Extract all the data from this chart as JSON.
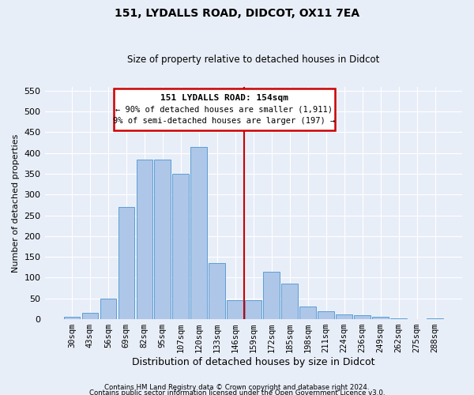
{
  "title": "151, LYDALLS ROAD, DIDCOT, OX11 7EA",
  "subtitle": "Size of property relative to detached houses in Didcot",
  "xlabel": "Distribution of detached houses by size in Didcot",
  "ylabel": "Number of detached properties",
  "footer_line1": "Contains HM Land Registry data © Crown copyright and database right 2024.",
  "footer_line2": "Contains public sector information licensed under the Open Government Licence v3.0.",
  "bar_labels": [
    "30sqm",
    "43sqm",
    "56sqm",
    "69sqm",
    "82sqm",
    "95sqm",
    "107sqm",
    "120sqm",
    "133sqm",
    "146sqm",
    "159sqm",
    "172sqm",
    "185sqm",
    "198sqm",
    "211sqm",
    "224sqm",
    "236sqm",
    "249sqm",
    "262sqm",
    "275sqm",
    "288sqm"
  ],
  "bar_values": [
    5,
    15,
    50,
    270,
    385,
    385,
    350,
    415,
    135,
    45,
    45,
    115,
    85,
    30,
    20,
    12,
    10,
    5,
    2,
    0,
    3
  ],
  "bar_color": "#aec6e8",
  "bar_edge_color": "#5a9fd4",
  "vline_color": "#cc0000",
  "annotation_title": "151 LYDALLS ROAD: 154sqm",
  "annotation_line1": "← 90% of detached houses are smaller (1,911)",
  "annotation_line2": "9% of semi-detached houses are larger (197) →",
  "annotation_box_color": "#cc0000",
  "annotation_text_color": "#000000",
  "background_color": "#e8eef8",
  "grid_color": "#ffffff",
  "ylim": [
    0,
    560
  ],
  "yticks": [
    0,
    50,
    100,
    150,
    200,
    250,
    300,
    350,
    400,
    450,
    500,
    550
  ]
}
